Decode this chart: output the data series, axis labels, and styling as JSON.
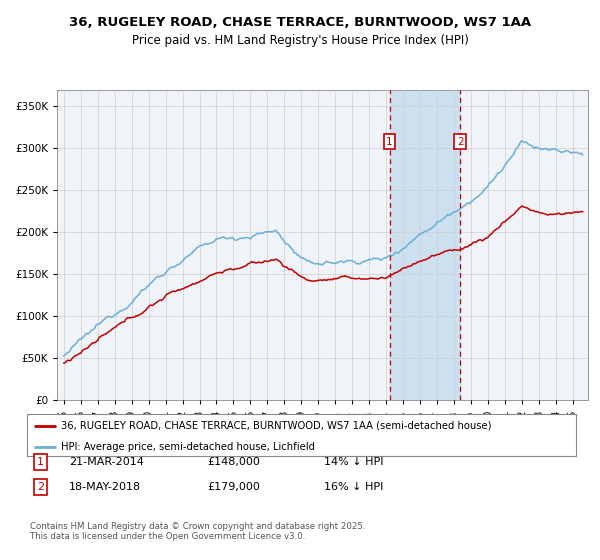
{
  "title_line1": "36, RUGELEY ROAD, CHASE TERRACE, BURNTWOOD, WS7 1AA",
  "title_line2": "Price paid vs. HM Land Registry's House Price Index (HPI)",
  "ylim": [
    0,
    370000
  ],
  "yticks": [
    0,
    50000,
    100000,
    150000,
    200000,
    250000,
    300000,
    350000
  ],
  "hpi_color": "#6aaed6",
  "price_color": "#c00000",
  "marker1_date": 2014.2,
  "marker2_date": 2018.37,
  "legend_line1": "36, RUGELEY ROAD, CHASE TERRACE, BURNTWOOD, WS7 1AA (semi-detached house)",
  "legend_line2": "HPI: Average price, semi-detached house, Lichfield",
  "footer": "Contains HM Land Registry data © Crown copyright and database right 2025.\nThis data is licensed under the Open Government Licence v3.0.",
  "background_color": "#f0f4f8",
  "shade_color": "#cce0f0",
  "xlim_left": 1994.6,
  "xlim_right": 2025.9
}
